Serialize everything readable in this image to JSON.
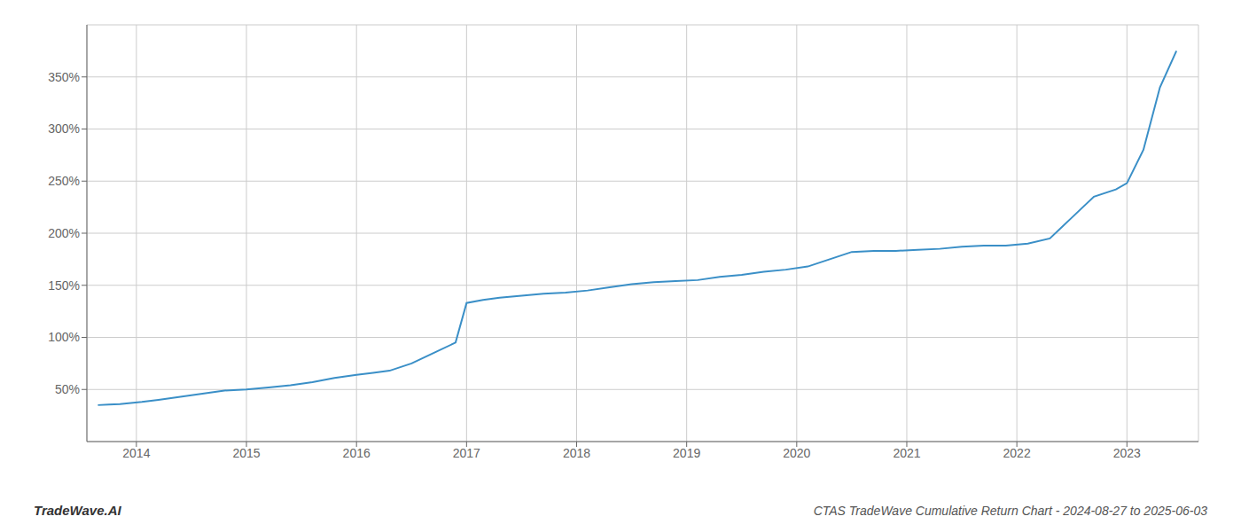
{
  "chart_data": {
    "type": "line",
    "title": "CTAS TradeWave Cumulative Return Chart - 2024-08-27 to 2025-06-03",
    "annotations": [
      "TradeWave.AI"
    ],
    "x": [
      2013.65,
      2013.75,
      2013.85,
      2013.95,
      2014.05,
      2014.2,
      2014.4,
      2014.6,
      2014.8,
      2015.0,
      2015.2,
      2015.4,
      2015.6,
      2015.8,
      2016.0,
      2016.15,
      2016.3,
      2016.5,
      2016.7,
      2016.9,
      2017.0,
      2017.15,
      2017.3,
      2017.5,
      2017.7,
      2017.9,
      2018.1,
      2018.3,
      2018.5,
      2018.7,
      2018.9,
      2019.1,
      2019.3,
      2019.5,
      2019.7,
      2019.9,
      2020.1,
      2020.3,
      2020.5,
      2020.7,
      2020.9,
      2021.1,
      2021.3,
      2021.5,
      2021.7,
      2021.9,
      2022.1,
      2022.3,
      2022.5,
      2022.7,
      2022.9,
      2023.0,
      2023.15,
      2023.3,
      2023.45
    ],
    "values": [
      35,
      35.5,
      36,
      37,
      38,
      40,
      43,
      46,
      49,
      50,
      52,
      54,
      57,
      61,
      64,
      66,
      68,
      75,
      85,
      95,
      133,
      136,
      138,
      140,
      142,
      143,
      145,
      148,
      151,
      153,
      154,
      155,
      158,
      160,
      163,
      165,
      168,
      175,
      182,
      183,
      183,
      184,
      185,
      187,
      188,
      188,
      190,
      195,
      215,
      235,
      242,
      248,
      280,
      340,
      375
    ],
    "color": "#3a8fc7",
    "xlim": [
      2013.55,
      2023.65
    ],
    "ylim": [
      0,
      400
    ],
    "xticks": [
      2014,
      2015,
      2016,
      2017,
      2018,
      2019,
      2020,
      2021,
      2022,
      2023
    ],
    "yticks": [
      {
        "value": 50,
        "label": "50%"
      },
      {
        "value": 100,
        "label": "100%"
      },
      {
        "value": 150,
        "label": "150%"
      },
      {
        "value": 200,
        "label": "200%"
      },
      {
        "value": 250,
        "label": "250%"
      },
      {
        "value": 300,
        "label": "300%"
      },
      {
        "value": 350,
        "label": "350%"
      }
    ],
    "grid": true
  }
}
